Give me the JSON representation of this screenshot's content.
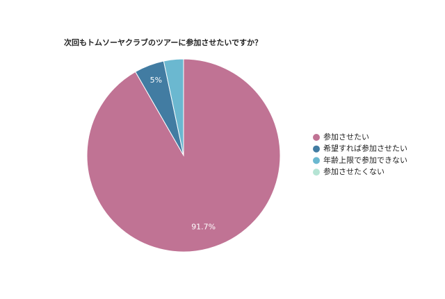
{
  "chart_data": {
    "type": "pie",
    "title": "次回もトムソーヤクラブのツアーに参加させたいですか？",
    "categories": [
      "参加させたい",
      "希望すれば参加させたい",
      "年齢上限で参加できない",
      "参加させたくない"
    ],
    "values": [
      91.7,
      5,
      3.3,
      0
    ],
    "value_labels": [
      "91.7%",
      "5%",
      null,
      null
    ],
    "colors": [
      "#c07394",
      "#427ca2",
      "#6bb8d0",
      "#b5e4d4"
    ],
    "legend": "right"
  }
}
